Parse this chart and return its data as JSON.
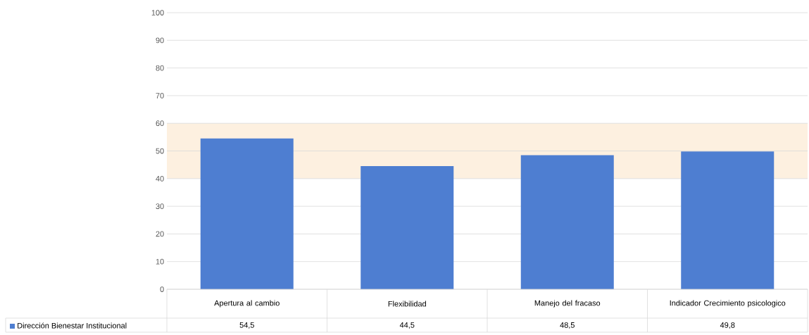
{
  "chart_data": {
    "type": "bar",
    "categories": [
      "Apertura al cambio",
      "Flexibilidad",
      "Manejo del fracaso",
      "Indicador Crecimiento psicologico"
    ],
    "series": [
      {
        "name": "Dirección Bienestar Institucional",
        "color": "#4e7ed1",
        "values": [
          54.5,
          44.5,
          48.5,
          49.8
        ],
        "value_labels": [
          "54,5",
          "44,5",
          "48,5",
          "49,8"
        ]
      }
    ],
    "ylim": [
      0,
      100
    ],
    "yticks": [
      0,
      10,
      20,
      30,
      40,
      50,
      60,
      70,
      80,
      90,
      100
    ],
    "grid": "y",
    "legend": "bottom",
    "bands": [
      {
        "axis": "y",
        "from": 40,
        "to": 60,
        "color": "#fdf0e0"
      }
    ]
  }
}
